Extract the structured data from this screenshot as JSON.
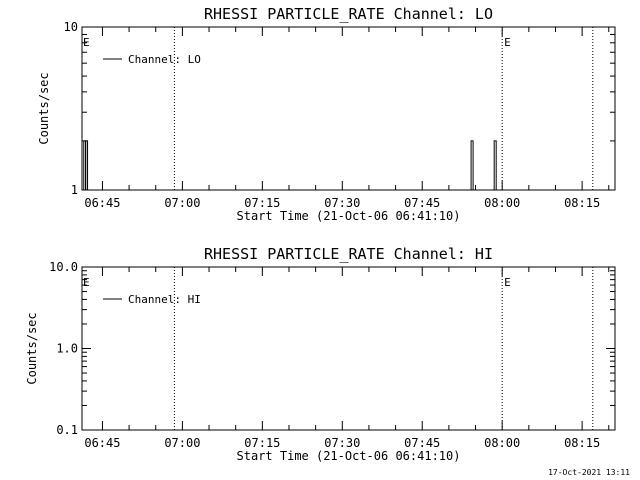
{
  "footer_timestamp": "17-Oct-2021 13:11",
  "chart_data": [
    {
      "type": "line",
      "title": "RHESSI PARTICLE_RATE Channel: LO",
      "xlabel": "Start Time (21-Oct-06 06:41:10)",
      "ylabel": "Counts/sec",
      "x_ticks": [
        "06:45",
        "07:00",
        "07:15",
        "07:30",
        "07:45",
        "08:00",
        "08:15"
      ],
      "y_scale": "log",
      "ylim": [
        1,
        10
      ],
      "y_tick_labels": [
        {
          "value": 1,
          "label": "1"
        },
        {
          "value": 10,
          "label": "10"
        }
      ],
      "legend": {
        "position": "top-left",
        "entries": [
          "Channel: LO"
        ]
      },
      "series": [
        {
          "name": "Channel: LO",
          "points": [
            [
              "06:41:30",
              2
            ],
            [
              "06:41:40",
              1
            ],
            [
              "06:41:50",
              2
            ],
            [
              "06:42:00",
              1
            ],
            [
              "07:54:10",
              2
            ],
            [
              "07:54:30",
              1
            ],
            [
              "07:58:30",
              2
            ],
            [
              "07:58:50",
              1
            ]
          ]
        }
      ],
      "event_lines": [
        {
          "time": "06:58:30",
          "label": ""
        },
        {
          "time": "08:00:00",
          "label": "E"
        },
        {
          "time": "08:17:00",
          "label": ""
        }
      ],
      "corner_marker": "E"
    },
    {
      "type": "line",
      "title": "RHESSI PARTICLE_RATE Channel: HI",
      "xlabel": "Start Time (21-Oct-06 06:41:10)",
      "ylabel": "Counts/sec",
      "x_ticks": [
        "06:45",
        "07:00",
        "07:15",
        "07:30",
        "07:45",
        "08:00",
        "08:15"
      ],
      "y_scale": "log",
      "ylim": [
        0.1,
        10
      ],
      "y_tick_labels": [
        {
          "value": 0.1,
          "label": "0.1"
        },
        {
          "value": 1,
          "label": "1.0"
        },
        {
          "value": 10,
          "label": "10.0"
        }
      ],
      "legend": {
        "position": "top-left",
        "entries": [
          "Channel: HI"
        ]
      },
      "series": [
        {
          "name": "Channel: HI",
          "points": []
        }
      ],
      "event_lines": [
        {
          "time": "06:58:30",
          "label": ""
        },
        {
          "time": "08:00:00",
          "label": "E"
        },
        {
          "time": "08:17:00",
          "label": ""
        }
      ],
      "corner_marker": "E"
    }
  ]
}
